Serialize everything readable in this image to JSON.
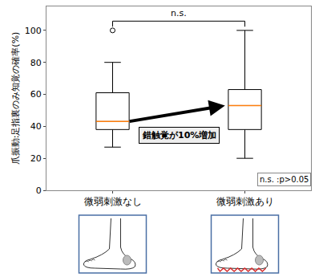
{
  "chart_data": {
    "type": "box",
    "ylabel": "爪振動:足指裏のみ知覚の確率(%)",
    "categories": [
      "微弱刺激なし",
      "微弱刺激あり"
    ],
    "boxes": [
      {
        "q1": 38,
        "median": 43,
        "q3": 61,
        "lower_whisker": 27,
        "upper_whisker": 80,
        "outliers": [
          100
        ]
      },
      {
        "q1": 38,
        "median": 53,
        "q3": 63,
        "lower_whisker": 20,
        "upper_whisker": 100,
        "outliers": []
      }
    ],
    "color": "#000000",
    "ylim": [
      0,
      115
    ],
    "yticks": [
      0,
      20,
      40,
      60,
      80,
      100
    ],
    "grid": false,
    "annotations": [
      "n.s.",
      "錯触覚が10%増加",
      "n.s. :p>0.05"
    ]
  }
}
